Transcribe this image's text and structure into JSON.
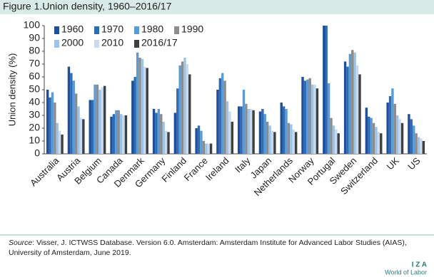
{
  "chart_data": {
    "type": "bar",
    "title": "Figure 1.Union density, 1960–2016/17",
    "y_label": "Union density (%)",
    "categories": [
      "Australia",
      "Austria",
      "Belgium",
      "Canada",
      "Denmark",
      "Germany",
      "Finland",
      "France",
      "Ireland",
      "Italy",
      "Japan",
      "Netherlands",
      "Norway",
      "Portugal",
      "Sweden",
      "Switzerland",
      "UK",
      "US"
    ],
    "series": [
      {
        "name": "1960",
        "color": "#1f4e9c",
        "values": [
          50,
          68,
          42,
          29,
          57,
          35,
          32,
          20,
          50,
          37,
          33,
          40,
          60,
          100,
          72,
          36,
          40,
          31
        ]
      },
      {
        "name": "1970",
        "color": "#2e6db4",
        "values": [
          44,
          63,
          42,
          31,
          60,
          32,
          51,
          22,
          59,
          37,
          35,
          37,
          57,
          100,
          68,
          29,
          45,
          27
        ]
      },
      {
        "name": "1980",
        "color": "#5b9bd5",
        "values": [
          48,
          57,
          54,
          34,
          79,
          35,
          69,
          18,
          63,
          50,
          31,
          35,
          58,
          55,
          78,
          28,
          51,
          22
        ]
      },
      {
        "name": "1990",
        "color": "#8c8c8c",
        "values": [
          40,
          47,
          54,
          34,
          75,
          31,
          72,
          10,
          57,
          39,
          25,
          24,
          59,
          28,
          81,
          24,
          39,
          16
        ]
      },
      {
        "name": "2000",
        "color": "#9dc3e6",
        "values": [
          24,
          37,
          50,
          31,
          74,
          25,
          75,
          8,
          41,
          35,
          22,
          23,
          54,
          22,
          79,
          21,
          30,
          13
        ]
      },
      {
        "name": "2010",
        "color": "#c9d9ee",
        "values": [
          18,
          28,
          52,
          30,
          68,
          18,
          70,
          8,
          33,
          35,
          18,
          19,
          54,
          19,
          69,
          17,
          27,
          12
        ]
      },
      {
        "name": "2016/17",
        "color": "#3f3f3f",
        "values": [
          15,
          27,
          53,
          30,
          67,
          17,
          62,
          8,
          25,
          34,
          17,
          17,
          51,
          16,
          62,
          16,
          24,
          10
        ]
      }
    ],
    "ylim": [
      0,
      100
    ],
    "yticks": [
      0,
      10,
      20,
      30,
      40,
      50,
      60,
      70,
      80,
      90,
      100
    ],
    "source_label": "Source",
    "source_text": ": Visser, J. ICTWSS Database. Version 6.0. Amsterdam: Amsterdam Institute for Advanced Labor Studies (AIAS), University of Amsterdam, June 2019.",
    "logo": "I Z A",
    "logo_sub": "World of Labor"
  }
}
